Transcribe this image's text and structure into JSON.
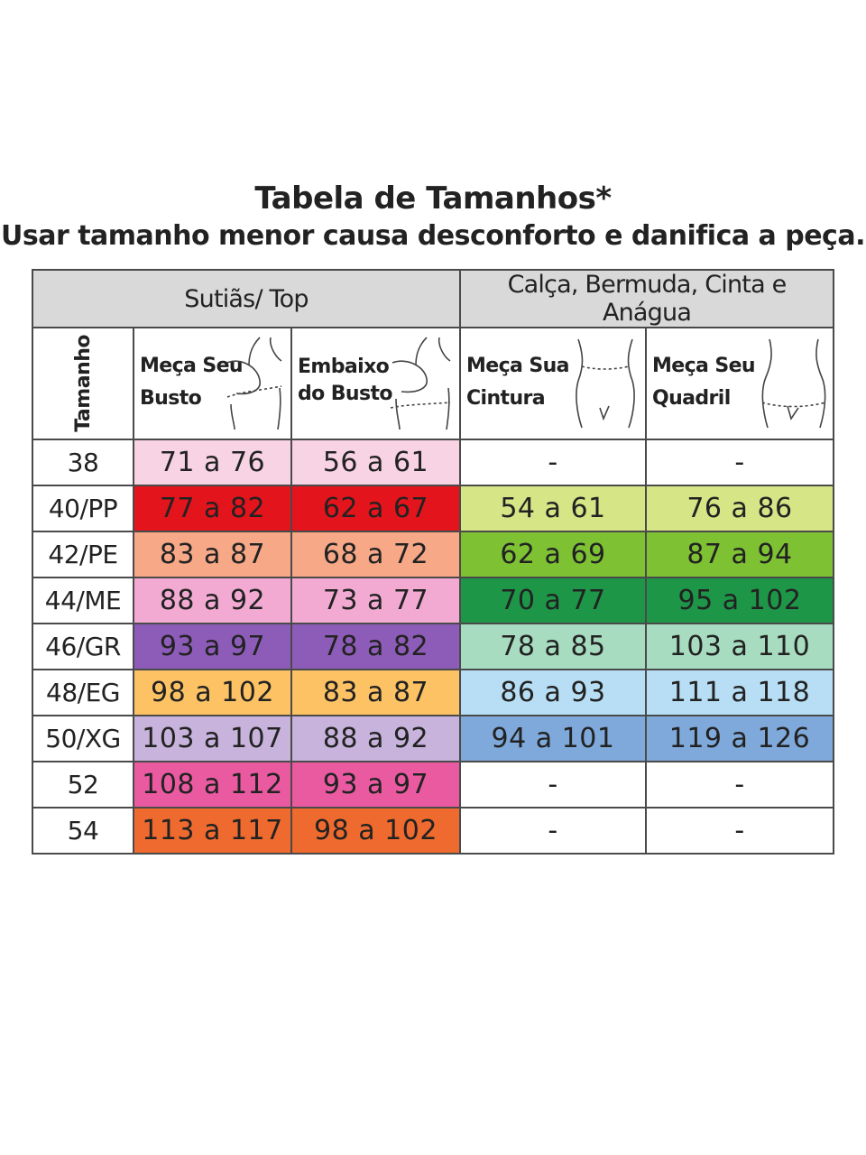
{
  "title": "Tabela de Tamanhos*",
  "subtitle": "Usar tamanho menor causa desconforto e danifica a peça.",
  "groups": {
    "left": "Sutiãs/ Top",
    "right": "Calça, Bermuda, Cinta e Anágua"
  },
  "columns": {
    "size": "Tamanho",
    "busto_l1": "Meça Seu",
    "busto_l2": "Busto",
    "embaixo_l1": "Embaixo",
    "embaixo_l2": "do Busto",
    "cintura_l1": "Meça Sua",
    "cintura_l2": "Cintura",
    "quadril_l1": "Meça Seu",
    "quadril_l2": "Quadril"
  },
  "icons": {
    "bust": "bust-outline-icon",
    "underbust": "underbust-outline-icon",
    "waist": "waist-outline-icon",
    "hip": "hip-outline-icon"
  },
  "rows": [
    {
      "size": "38",
      "busto": "71 a 76",
      "embaixo": "56 a 61",
      "cintura": "-",
      "quadril": "-",
      "colors": {
        "busto": "#f7d3e3",
        "embaixo": "#f7d3e3",
        "cintura": "#ffffff",
        "quadril": "#ffffff"
      }
    },
    {
      "size": "40/PP",
      "busto": "77 a 82",
      "embaixo": "62 a 67",
      "cintura": "54 a 61",
      "quadril": "76 a 86",
      "colors": {
        "busto": "#e3141c",
        "embaixo": "#e3141c",
        "cintura": "#d6e586",
        "quadril": "#d6e586"
      }
    },
    {
      "size": "42/PE",
      "busto": "83 a 87",
      "embaixo": "68 a 72",
      "cintura": "62 a 69",
      "quadril": "87 a 94",
      "colors": {
        "busto": "#f6a887",
        "embaixo": "#f6a887",
        "cintura": "#7ec234",
        "quadril": "#7ec234"
      }
    },
    {
      "size": "44/ME",
      "busto": "88 a 92",
      "embaixo": "73 a 77",
      "cintura": "70 a 77",
      "quadril": "95 a 102",
      "colors": {
        "busto": "#f2aad2",
        "embaixo": "#f2aad2",
        "cintura": "#1d9648",
        "quadril": "#1d9648"
      }
    },
    {
      "size": "46/GR",
      "busto": "93 a 97",
      "embaixo": "78 a 82",
      "cintura": "78 a 85",
      "quadril": "103 a 110",
      "colors": {
        "busto": "#8d5cb8",
        "embaixo": "#8d5cb8",
        "cintura": "#a7dcc0",
        "quadril": "#a7dcc0"
      }
    },
    {
      "size": "48/EG",
      "busto": "98 a 102",
      "embaixo": "83 a 87",
      "cintura": "86 a 93",
      "quadril": "111 a 118",
      "colors": {
        "busto": "#fdc264",
        "embaixo": "#fdc264",
        "cintura": "#b7def4",
        "quadril": "#b7def4"
      }
    },
    {
      "size": "50/XG",
      "busto": "103 a 107",
      "embaixo": "88 a 92",
      "cintura": "94 a 101",
      "quadril": "119 a 126",
      "colors": {
        "busto": "#c7b3dc",
        "embaixo": "#c7b3dc",
        "cintura": "#7fa9da",
        "quadril": "#7fa9da"
      }
    },
    {
      "size": "52",
      "busto": "108 a 112",
      "embaixo": "93 a 97",
      "cintura": "-",
      "quadril": "-",
      "colors": {
        "busto": "#e95aa1",
        "embaixo": "#e95aa1",
        "cintura": "#ffffff",
        "quadril": "#ffffff"
      }
    },
    {
      "size": "54",
      "busto": "113 a 117",
      "embaixo": "98 a 102",
      "cintura": "-",
      "quadril": "-",
      "colors": {
        "busto": "#ee6a2e",
        "embaixo": "#ee6a2e",
        "cintura": "#ffffff",
        "quadril": "#ffffff"
      }
    }
  ]
}
